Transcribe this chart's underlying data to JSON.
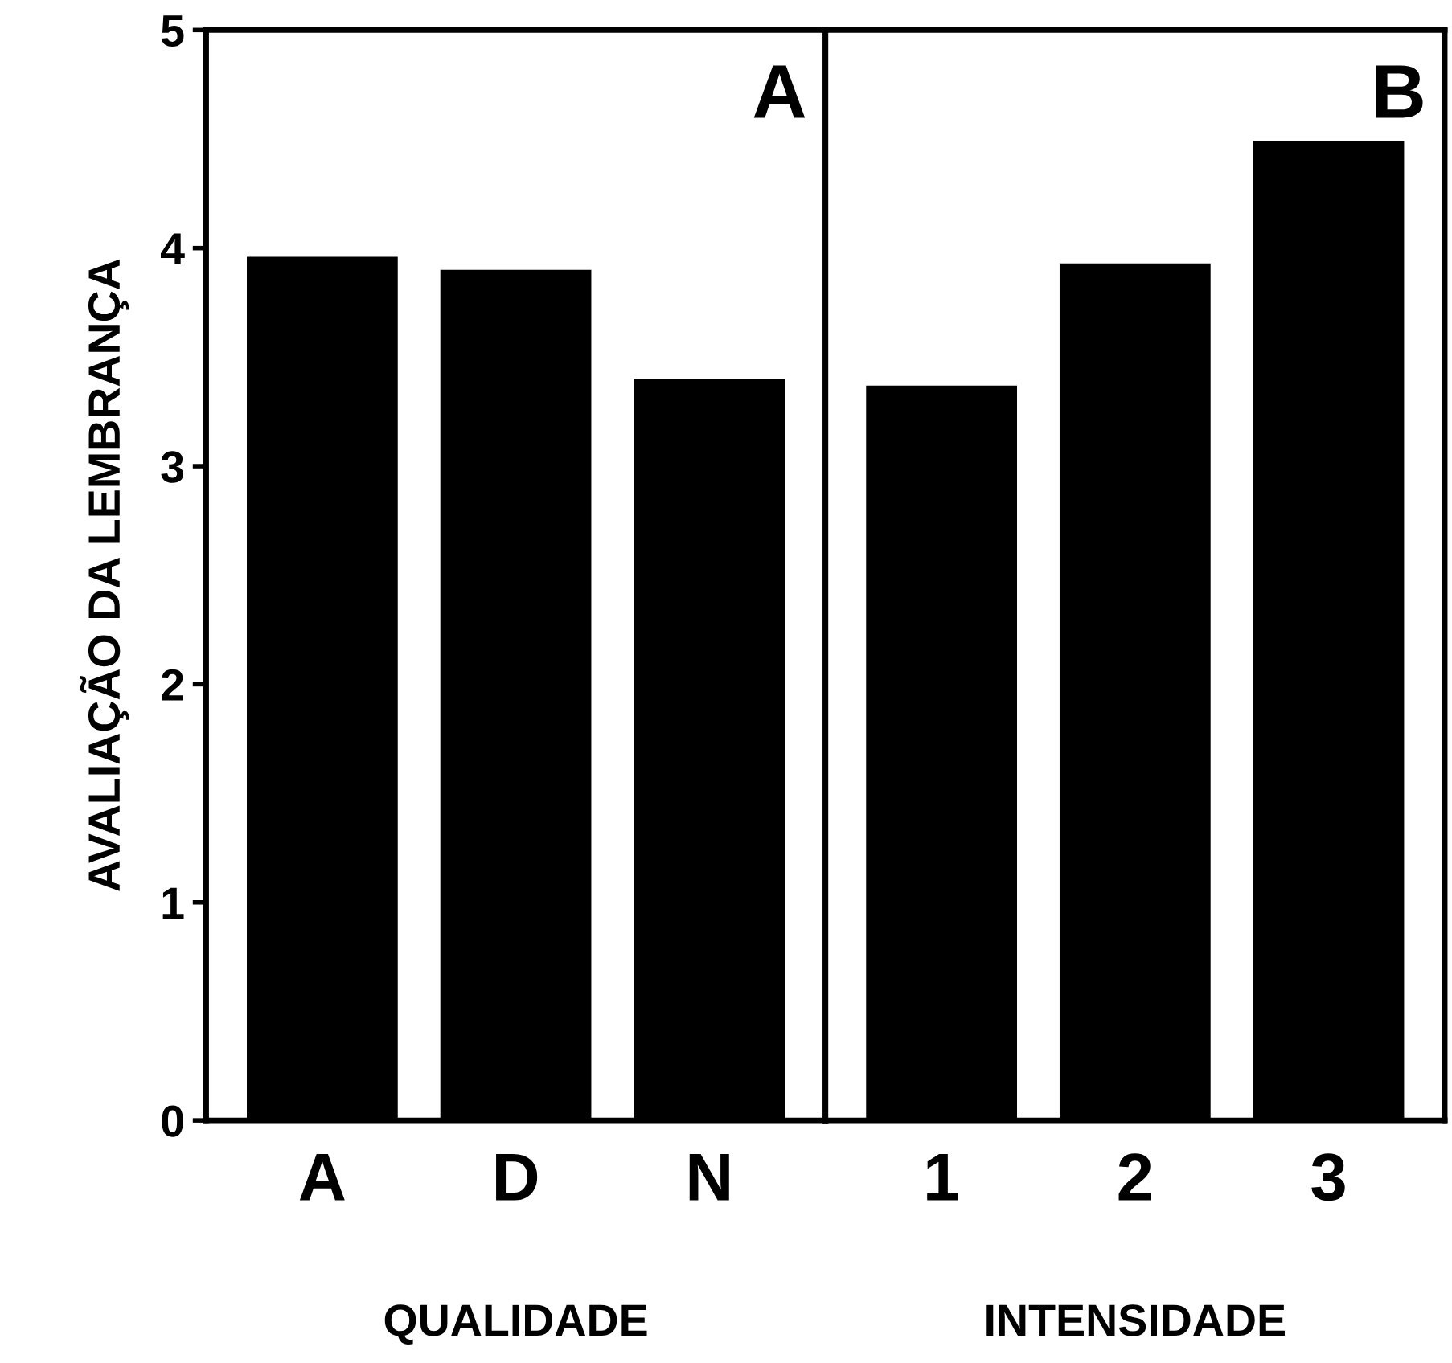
{
  "chart_data": [
    {
      "type": "bar",
      "title": "A",
      "xlabel": "QUALIDADE",
      "ylabel": "AVALIAÇÃO DA LEMBRANÇA",
      "categories": [
        "A",
        "D",
        "N"
      ],
      "values": [
        3.96,
        3.9,
        3.4
      ],
      "color": "#000000",
      "ylim": [
        0,
        5
      ],
      "yticks": [
        0,
        1,
        2,
        3,
        4,
        5
      ]
    },
    {
      "type": "bar",
      "title": "B",
      "xlabel": "INTENSIDADE",
      "categories": [
        "1",
        "2",
        "3"
      ],
      "values": [
        3.37,
        3.93,
        4.49
      ],
      "color": "#000000",
      "ylim": [
        0,
        5
      ],
      "yticks": [
        0,
        1,
        2,
        3,
        4,
        5
      ],
      "tick_labels": "x"
    }
  ]
}
